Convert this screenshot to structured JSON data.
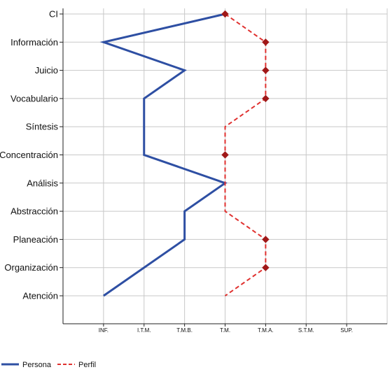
{
  "chart_data": {
    "type": "line",
    "orientation": "horizontal-profile",
    "categories": [
      "CI",
      "Información",
      "Juicio",
      "Vocabulario",
      "Síntesis",
      "Concentración",
      "Análisis",
      "Abstracción",
      "Planeación",
      "Organización",
      "Atención"
    ],
    "x_levels": [
      "INF.",
      "I.T.M.",
      "T.M.B.",
      "T.M.",
      "T.M.A.",
      "S.T.M.",
      "SUP."
    ],
    "series": [
      {
        "name": "Persona",
        "color": "#2e4fa3",
        "style": "solid",
        "values": [
          null,
          "INF.",
          "T.M.B.",
          "I.T.M.",
          "I.T.M.",
          "I.T.M.",
          "T.M.",
          "T.M.B.",
          "T.M.B.",
          null,
          "INF."
        ]
      },
      {
        "name": "Perfil",
        "color": "#e0312f",
        "style": "dashed",
        "marker_color": "#a01818",
        "values": [
          "T.M.",
          "T.M.A.",
          "T.M.A.",
          "T.M.A.",
          "T.M.",
          "T.M.",
          "T.M.",
          "T.M.",
          "T.M.A.",
          "T.M.A.",
          "T.M."
        ],
        "markers": [
          true,
          true,
          true,
          true,
          false,
          true,
          false,
          false,
          true,
          true,
          false
        ]
      }
    ],
    "persona_connect": [
      [
        0,
        1
      ],
      [
        1,
        2
      ],
      [
        2,
        3
      ],
      [
        3,
        4
      ],
      [
        4,
        5
      ],
      [
        5,
        6
      ],
      [
        6,
        7
      ],
      [
        7,
        8
      ],
      [
        8,
        10
      ]
    ],
    "persona_start_level": "T.M.",
    "grid": true,
    "legend_position": "bottom-left"
  }
}
